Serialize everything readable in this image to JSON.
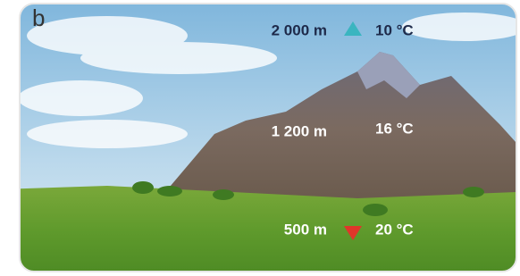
{
  "panel_label": "b",
  "levels": [
    {
      "altitude": "2 000 m",
      "temperature": "10 °C"
    },
    {
      "altitude": "1 200 m",
      "temperature": "16 °C"
    },
    {
      "altitude": "500 m",
      "temperature": "20 °C"
    }
  ]
}
